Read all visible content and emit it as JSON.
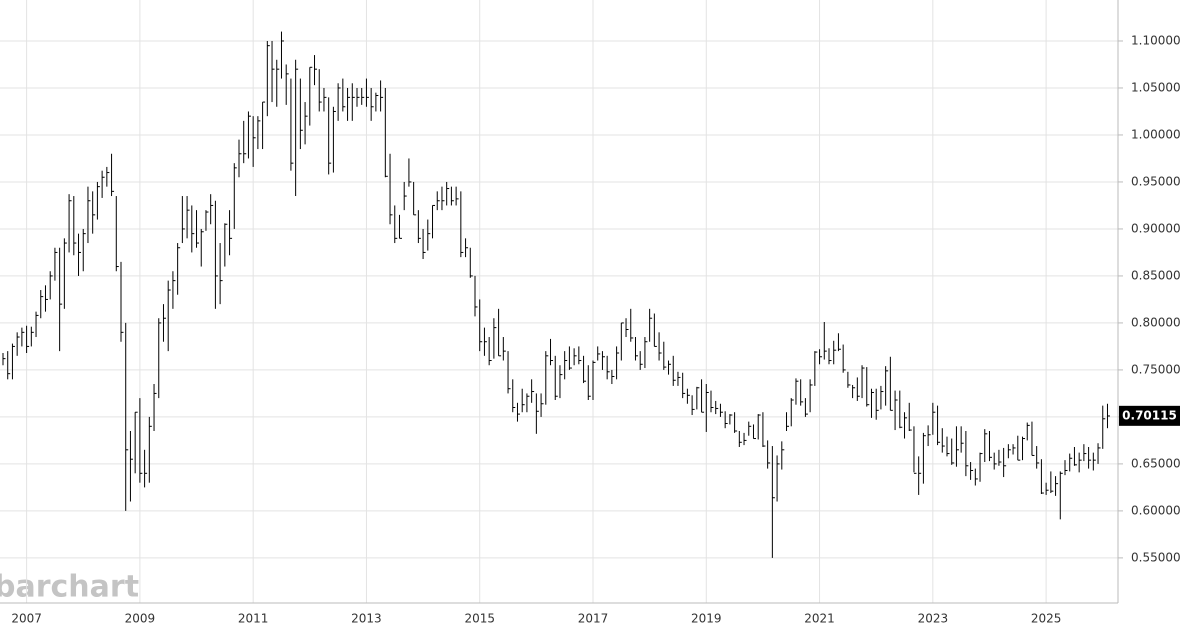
{
  "chart_data": {
    "type": "ohlc",
    "watermark": "barchart",
    "color": "#000000",
    "grid": true,
    "last_price": 0.70115,
    "ylim": [
      0.502,
      1.1436
    ],
    "yticks": [
      {
        "value": 0.55,
        "label": "0.55000"
      },
      {
        "value": 0.6,
        "label": "0.60000"
      },
      {
        "value": 0.65,
        "label": "0.65000"
      },
      {
        "value": 0.7,
        "label": "0.70000"
      },
      {
        "value": 0.75,
        "label": "0.75000"
      },
      {
        "value": 0.8,
        "label": "0.80000"
      },
      {
        "value": 0.85,
        "label": "0.85000"
      },
      {
        "value": 0.9,
        "label": "0.90000"
      },
      {
        "value": 0.95,
        "label": "0.95000"
      },
      {
        "value": 1.0,
        "label": "1.00000"
      },
      {
        "value": 1.05,
        "label": "1.05000"
      },
      {
        "value": 1.1,
        "label": "1.10000"
      }
    ],
    "categories": [
      null,
      null,
      null,
      null,
      null,
      "2007",
      null,
      null,
      null,
      null,
      null,
      null,
      null,
      null,
      null,
      null,
      null,
      null,
      null,
      null,
      null,
      null,
      null,
      null,
      null,
      null,
      null,
      null,
      null,
      "2009",
      null,
      null,
      null,
      null,
      null,
      null,
      null,
      null,
      null,
      null,
      null,
      null,
      null,
      null,
      null,
      null,
      null,
      null,
      null,
      null,
      null,
      null,
      null,
      "2011",
      null,
      null,
      null,
      null,
      null,
      null,
      null,
      null,
      null,
      null,
      null,
      null,
      null,
      null,
      null,
      null,
      null,
      null,
      null,
      null,
      null,
      null,
      null,
      "2013",
      null,
      null,
      null,
      null,
      null,
      null,
      null,
      null,
      null,
      null,
      null,
      null,
      null,
      null,
      null,
      null,
      null,
      null,
      null,
      null,
      null,
      null,
      null,
      "2015",
      null,
      null,
      null,
      null,
      null,
      null,
      null,
      null,
      null,
      null,
      null,
      null,
      null,
      null,
      null,
      null,
      null,
      null,
      null,
      null,
      null,
      null,
      null,
      "2017",
      null,
      null,
      null,
      null,
      null,
      null,
      null,
      null,
      null,
      null,
      null,
      null,
      null,
      null,
      null,
      null,
      null,
      null,
      null,
      null,
      null,
      null,
      null,
      "2019",
      null,
      null,
      null,
      null,
      null,
      null,
      null,
      null,
      null,
      null,
      null,
      null,
      null,
      null,
      null,
      null,
      null,
      null,
      null,
      null,
      null,
      null,
      null,
      "2021",
      null,
      null,
      null,
      null,
      null,
      null,
      null,
      null,
      null,
      null,
      null,
      null,
      null,
      null,
      null,
      null,
      null,
      null,
      null,
      null,
      null,
      null,
      null,
      "2023",
      null,
      null,
      null,
      null,
      null,
      null,
      null,
      null,
      null,
      null,
      null,
      null,
      null,
      null,
      null,
      null,
      null,
      null,
      null,
      null,
      null,
      null,
      null,
      "2025",
      null,
      null,
      null,
      null,
      null,
      null,
      null,
      null,
      null,
      null,
      null,
      null,
      null
    ],
    "high": [
      0.768,
      0.77,
      0.778,
      0.79,
      0.795,
      0.797,
      0.796,
      0.812,
      0.835,
      0.84,
      0.855,
      0.88,
      0.88,
      0.89,
      0.937,
      0.935,
      0.895,
      0.9,
      0.945,
      0.94,
      0.95,
      0.962,
      0.966,
      0.98,
      0.935,
      0.865,
      0.8,
      0.685,
      0.705,
      0.72,
      0.665,
      0.7,
      0.735,
      0.805,
      0.82,
      0.845,
      0.855,
      0.885,
      0.935,
      0.935,
      0.925,
      0.92,
      0.9,
      0.92,
      0.937,
      0.93,
      0.885,
      0.906,
      0.92,
      0.97,
      0.995,
      1.015,
      1.025,
      1.02,
      1.02,
      1.035,
      1.1,
      1.1,
      1.08,
      1.11,
      1.075,
      1.06,
      1.08,
      1.06,
      1.035,
      1.072,
      1.085,
      1.07,
      1.05,
      1.04,
      1.03,
      1.055,
      1.06,
      1.05,
      1.055,
      1.05,
      1.05,
      1.06,
      1.05,
      1.045,
      1.058,
      1.05,
      0.98,
      0.925,
      0.915,
      0.95,
      0.975,
      0.95,
      0.92,
      0.9,
      0.91,
      0.925,
      0.94,
      0.945,
      0.95,
      0.945,
      0.945,
      0.94,
      0.89,
      0.88,
      0.85,
      0.825,
      0.795,
      0.785,
      0.805,
      0.815,
      0.785,
      0.77,
      0.74,
      0.715,
      0.73,
      0.725,
      0.74,
      0.725,
      0.725,
      0.77,
      0.783,
      0.765,
      0.755,
      0.77,
      0.775,
      0.773,
      0.775,
      0.765,
      0.755,
      0.76,
      0.775,
      0.77,
      0.765,
      0.75,
      0.775,
      0.8,
      0.805,
      0.815,
      0.785,
      0.77,
      0.785,
      0.815,
      0.81,
      0.79,
      0.78,
      0.76,
      0.765,
      0.748,
      0.747,
      0.73,
      0.723,
      0.732,
      0.74,
      0.735,
      0.728,
      0.717,
      0.714,
      0.706,
      0.703,
      0.705,
      0.685,
      0.683,
      0.695,
      0.692,
      0.703,
      0.705,
      0.675,
      0.669,
      0.659,
      0.674,
      0.705,
      0.72,
      0.741,
      0.74,
      0.72,
      0.74,
      0.77,
      0.772,
      0.801,
      0.773,
      0.781,
      0.789,
      0.777,
      0.748,
      0.734,
      0.742,
      0.755,
      0.753,
      0.73,
      0.73,
      0.733,
      0.754,
      0.764,
      0.728,
      0.728,
      0.705,
      0.715,
      0.69,
      0.658,
      0.683,
      0.691,
      0.715,
      0.712,
      0.688,
      0.679,
      0.677,
      0.69,
      0.69,
      0.685,
      0.652,
      0.645,
      0.662,
      0.687,
      0.685,
      0.662,
      0.665,
      0.667,
      0.671,
      0.671,
      0.68,
      0.679,
      0.694,
      0.695,
      0.669,
      0.655,
      0.63,
      0.642,
      0.637,
      0.642,
      0.654,
      0.661,
      0.668,
      0.662,
      0.671,
      0.668,
      0.662,
      0.672,
      0.712,
      0.714
    ],
    "low": [
      0.755,
      0.74,
      0.74,
      0.765,
      0.775,
      0.768,
      0.775,
      0.785,
      0.805,
      0.812,
      0.825,
      0.845,
      0.77,
      0.815,
      0.875,
      0.872,
      0.85,
      0.855,
      0.885,
      0.895,
      0.91,
      0.933,
      0.945,
      0.935,
      0.855,
      0.78,
      0.6,
      0.61,
      0.64,
      0.63,
      0.625,
      0.63,
      0.685,
      0.72,
      0.78,
      0.77,
      0.815,
      0.83,
      0.885,
      0.89,
      0.875,
      0.88,
      0.86,
      0.898,
      0.905,
      0.815,
      0.82,
      0.86,
      0.872,
      0.9,
      0.955,
      0.97,
      0.975,
      0.966,
      0.985,
      0.985,
      1.02,
      1.035,
      1.03,
      1.06,
      1.032,
      0.962,
      0.935,
      0.985,
      0.99,
      1.01,
      1.053,
      1.025,
      1.025,
      0.958,
      0.96,
      1.015,
      1.025,
      1.015,
      1.015,
      1.03,
      1.032,
      1.03,
      1.015,
      1.025,
      1.025,
      0.955,
      0.905,
      0.885,
      0.89,
      0.92,
      0.945,
      0.915,
      0.885,
      0.868,
      0.877,
      0.89,
      0.92,
      0.92,
      0.925,
      0.925,
      0.925,
      0.87,
      0.87,
      0.848,
      0.807,
      0.77,
      0.765,
      0.755,
      0.762,
      0.765,
      0.76,
      0.725,
      0.705,
      0.695,
      0.705,
      0.705,
      0.715,
      0.682,
      0.7,
      0.713,
      0.755,
      0.718,
      0.72,
      0.74,
      0.75,
      0.755,
      0.756,
      0.736,
      0.718,
      0.718,
      0.76,
      0.75,
      0.74,
      0.735,
      0.74,
      0.76,
      0.785,
      0.78,
      0.76,
      0.75,
      0.752,
      0.78,
      0.775,
      0.76,
      0.75,
      0.745,
      0.733,
      0.733,
      0.72,
      0.714,
      0.702,
      0.708,
      0.705,
      0.684,
      0.705,
      0.703,
      0.7,
      0.688,
      0.692,
      0.683,
      0.668,
      0.67,
      0.68,
      0.677,
      0.676,
      0.668,
      0.645,
      0.55,
      0.61,
      0.644,
      0.685,
      0.69,
      0.713,
      0.712,
      0.7,
      0.705,
      0.733,
      0.756,
      0.761,
      0.756,
      0.756,
      0.77,
      0.747,
      0.731,
      0.72,
      0.717,
      0.72,
      0.711,
      0.699,
      0.697,
      0.708,
      0.712,
      0.707,
      0.686,
      0.688,
      0.677,
      0.685,
      0.641,
      0.617,
      0.629,
      0.669,
      0.681,
      0.67,
      0.662,
      0.658,
      0.649,
      0.647,
      0.662,
      0.637,
      0.633,
      0.627,
      0.631,
      0.652,
      0.653,
      0.644,
      0.648,
      0.636,
      0.656,
      0.66,
      0.654,
      0.654,
      0.675,
      0.659,
      0.645,
      0.618,
      0.617,
      0.619,
      0.616,
      0.591,
      0.638,
      0.642,
      0.648,
      0.641,
      0.653,
      0.645,
      0.643,
      0.65,
      0.666,
      0.688
    ],
    "close": [
      0.762,
      0.746,
      0.775,
      0.785,
      0.79,
      0.775,
      0.79,
      0.808,
      0.828,
      0.825,
      0.85,
      0.875,
      0.82,
      0.885,
      0.93,
      0.885,
      0.875,
      0.895,
      0.93,
      0.915,
      0.945,
      0.955,
      0.96,
      0.94,
      0.86,
      0.79,
      0.665,
      0.655,
      0.705,
      0.64,
      0.64,
      0.69,
      0.725,
      0.8,
      0.805,
      0.835,
      0.845,
      0.88,
      0.9,
      0.92,
      0.895,
      0.885,
      0.897,
      0.918,
      0.925,
      0.85,
      0.845,
      0.905,
      0.89,
      0.965,
      0.98,
      0.98,
      1.02,
      0.997,
      1.015,
      1.035,
      1.095,
      1.07,
      1.07,
      1.1,
      1.065,
      0.97,
      1.07,
      1.005,
      1.02,
      1.072,
      1.07,
      1.035,
      1.04,
      0.97,
      1.025,
      1.05,
      1.03,
      1.04,
      1.04,
      1.04,
      1.04,
      1.04,
      1.03,
      1.042,
      1.04,
      0.956,
      0.915,
      0.89,
      0.89,
      0.935,
      0.95,
      0.915,
      0.89,
      0.875,
      0.895,
      0.925,
      0.93,
      0.93,
      0.943,
      0.93,
      0.932,
      0.875,
      0.88,
      0.85,
      0.817,
      0.78,
      0.78,
      0.76,
      0.795,
      0.765,
      0.77,
      0.73,
      0.71,
      0.703,
      0.713,
      0.722,
      0.727,
      0.706,
      0.714,
      0.765,
      0.76,
      0.722,
      0.745,
      0.76,
      0.752,
      0.765,
      0.76,
      0.738,
      0.722,
      0.758,
      0.767,
      0.764,
      0.748,
      0.743,
      0.768,
      0.8,
      0.793,
      0.784,
      0.765,
      0.756,
      0.78,
      0.805,
      0.775,
      0.768,
      0.753,
      0.756,
      0.739,
      0.742,
      0.725,
      0.723,
      0.708,
      0.731,
      0.705,
      0.726,
      0.71,
      0.709,
      0.705,
      0.693,
      0.702,
      0.685,
      0.673,
      0.675,
      0.69,
      0.677,
      0.702,
      0.669,
      0.651,
      0.614,
      0.65,
      0.665,
      0.69,
      0.718,
      0.738,
      0.716,
      0.703,
      0.734,
      0.769,
      0.764,
      0.77,
      0.76,
      0.771,
      0.772,
      0.75,
      0.734,
      0.731,
      0.722,
      0.752,
      0.713,
      0.726,
      0.707,
      0.727,
      0.749,
      0.707,
      0.718,
      0.689,
      0.699,
      0.686,
      0.64,
      0.64,
      0.68,
      0.681,
      0.705,
      0.673,
      0.669,
      0.661,
      0.651,
      0.665,
      0.672,
      0.648,
      0.643,
      0.634,
      0.661,
      0.682,
      0.657,
      0.65,
      0.652,
      0.648,
      0.665,
      0.667,
      0.654,
      0.677,
      0.691,
      0.659,
      0.651,
      0.619,
      0.622,
      0.621,
      0.629,
      0.64,
      0.643,
      0.656,
      0.649,
      0.654,
      0.661,
      0.654,
      0.654,
      0.667,
      0.698,
      0.701
    ]
  }
}
